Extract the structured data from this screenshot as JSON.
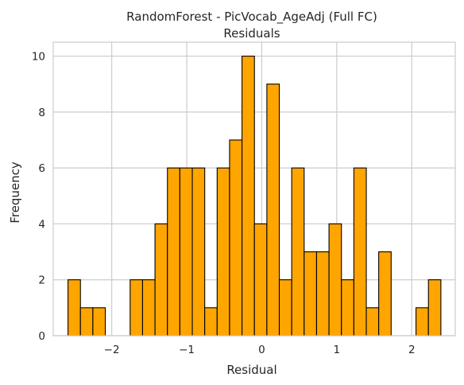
{
  "chart_data": {
    "type": "bar",
    "subtype": "histogram",
    "title": "RandomForest - PicVocab_AgeAdj (Full FC)",
    "subtitle": "Residuals",
    "xlabel": "Residual",
    "ylabel": "Frequency",
    "xlim": [
      -2.78,
      2.58
    ],
    "ylim": [
      0,
      10.5
    ],
    "xticks": [
      -2,
      -1,
      0,
      1,
      2
    ],
    "xtick_labels": [
      "−2",
      "−1",
      "0",
      "1",
      "2"
    ],
    "yticks": [
      0,
      2,
      4,
      6,
      8,
      10
    ],
    "ytick_labels": [
      "0",
      "2",
      "4",
      "6",
      "8",
      "10"
    ],
    "grid": true,
    "bar_color": "#FFA500",
    "edge_color": "#000000",
    "bin_start": -2.583,
    "bin_width": 0.1657,
    "values": [
      2,
      1,
      1,
      0,
      0,
      2,
      2,
      4,
      6,
      6,
      6,
      1,
      6,
      7,
      10,
      4,
      9,
      2,
      6,
      3,
      3,
      4,
      2,
      6,
      1,
      3,
      0,
      0,
      1,
      2
    ]
  }
}
